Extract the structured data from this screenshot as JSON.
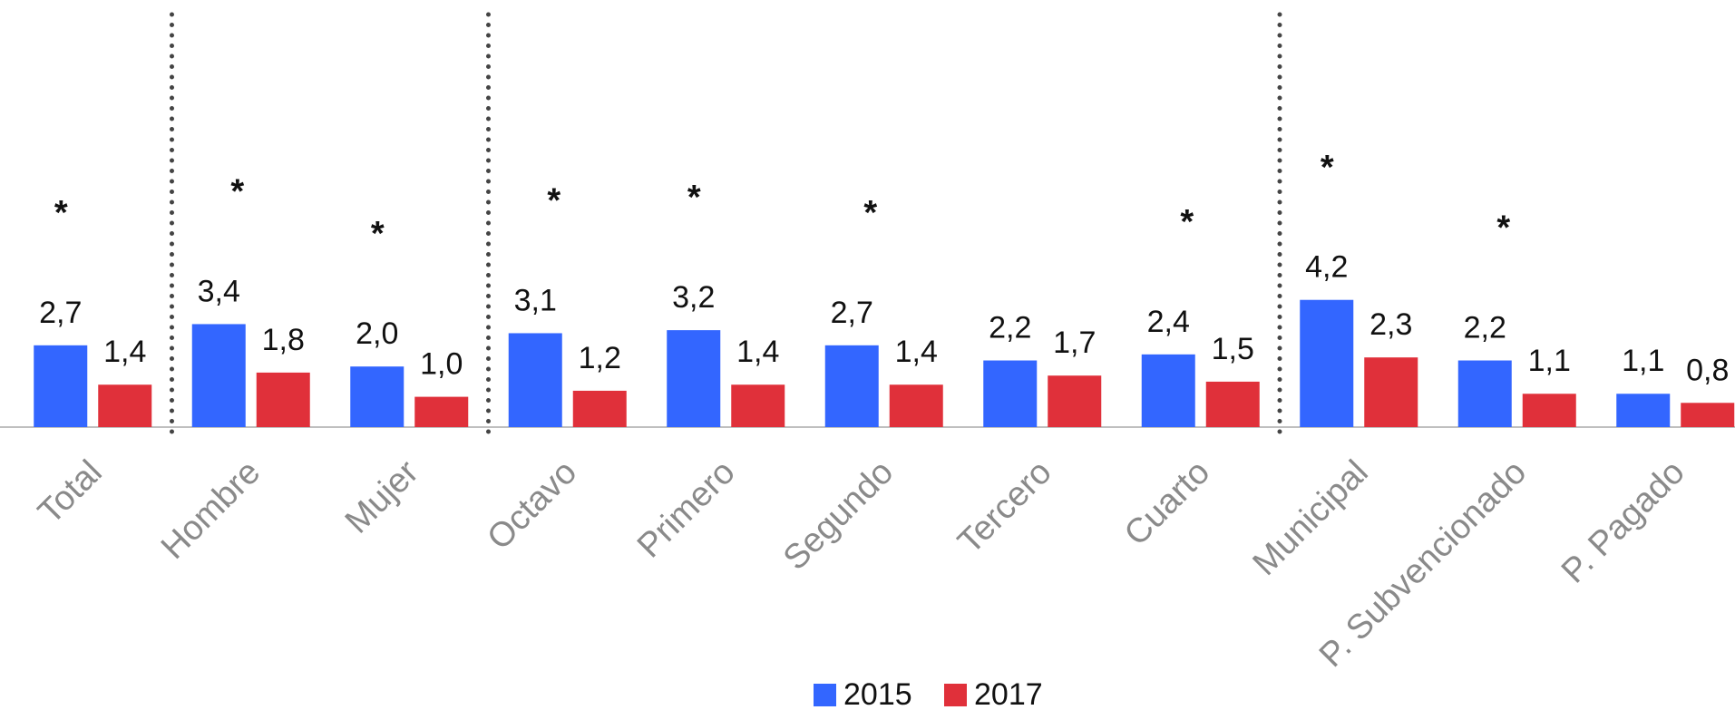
{
  "chart_data": {
    "type": "bar",
    "categories": [
      "Total",
      "Hombre",
      "Mujer",
      "Octavo",
      "Primero",
      "Segundo",
      "Tercero",
      "Cuarto",
      "Municipal",
      "P. Subvencionado",
      "P. Pagado"
    ],
    "series": [
      {
        "name": "2015",
        "color": "#3366ff",
        "values": [
          2.7,
          3.4,
          2.0,
          3.1,
          3.2,
          2.7,
          2.2,
          2.4,
          4.2,
          2.2,
          1.1
        ],
        "value_labels": [
          "2,7",
          "3,4",
          "2,0",
          "3,1",
          "3,2",
          "2,7",
          "2,2",
          "2,4",
          "4,2",
          "2,2",
          "1,1"
        ]
      },
      {
        "name": "2017",
        "color": "#e0303a",
        "values": [
          1.4,
          1.8,
          1.0,
          1.2,
          1.4,
          1.4,
          1.7,
          1.5,
          2.3,
          1.1,
          0.8
        ],
        "value_labels": [
          "1,4",
          "1,8",
          "1,0",
          "1,2",
          "1,4",
          "1,4",
          "1,7",
          "1,5",
          "2,3",
          "1,1",
          "0,8"
        ]
      }
    ],
    "annotations": [
      "*",
      "*",
      "*",
      "*",
      "*",
      "*",
      null,
      "*",
      "*",
      "*",
      null
    ],
    "ylim": [
      0,
      5
    ],
    "legend": "bottom"
  }
}
